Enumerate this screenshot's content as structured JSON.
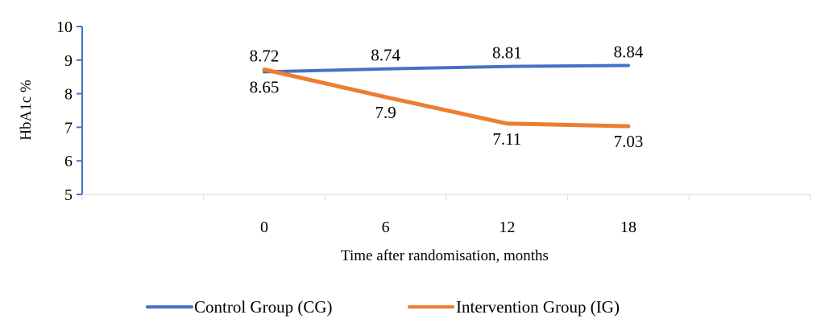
{
  "chart_data": {
    "type": "line",
    "title": "",
    "xlabel": "Time after randomisation, months",
    "ylabel": "HbA1c %",
    "ylim": [
      5,
      10
    ],
    "yticks": [
      "5",
      "6",
      "7",
      "8",
      "9",
      "10"
    ],
    "categories": [
      "",
      "0",
      "6",
      "12",
      "18",
      ""
    ],
    "grid": false,
    "legend_position": "bottom",
    "series": [
      {
        "name": "Control Group (CG)",
        "color": "#4472C4",
        "x": [
          "0",
          "6",
          "12",
          "18"
        ],
        "values": [
          8.65,
          8.74,
          8.81,
          8.84
        ],
        "labels": [
          "8.65",
          "8.74",
          "8.81",
          "8.84"
        ]
      },
      {
        "name": "Intervention Group (IG)",
        "color": "#ED7D31",
        "x": [
          "0",
          "6",
          "12",
          "18"
        ],
        "values": [
          8.72,
          7.9,
          7.11,
          7.03
        ],
        "labels": [
          "8.72",
          "7.9",
          "7.11",
          "7.03"
        ]
      }
    ]
  }
}
